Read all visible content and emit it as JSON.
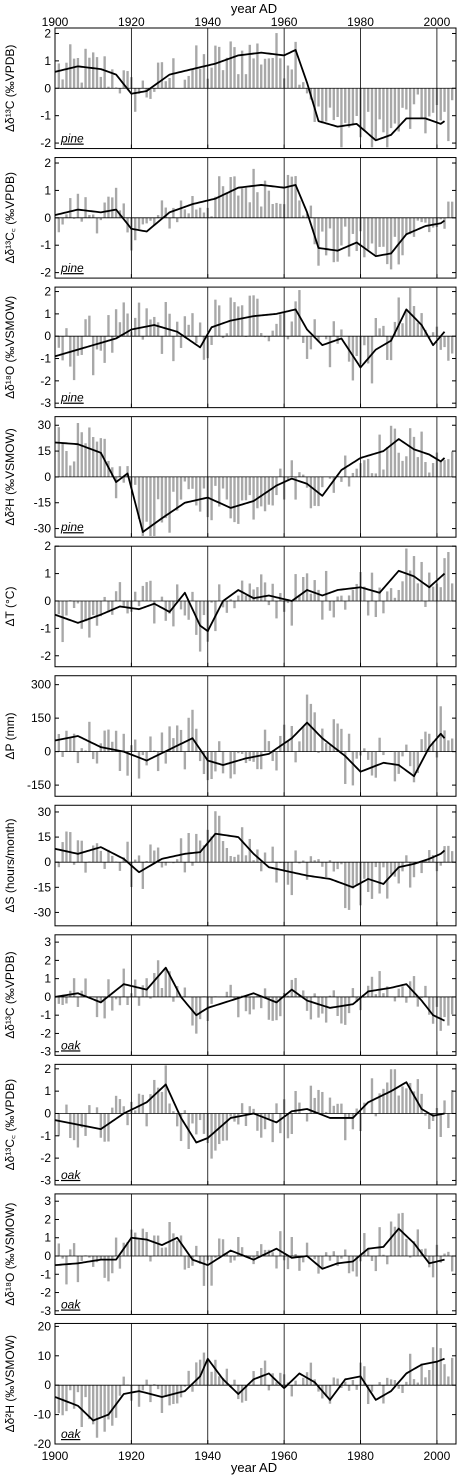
{
  "figure": {
    "top_xlabel": "year AD",
    "bottom_xlabel": "year AD",
    "xlim": [
      1900,
      2005
    ],
    "x_ticks": [
      1900,
      1920,
      1940,
      1960,
      1980,
      2000
    ],
    "colors": {
      "bars": "#a8a8a8",
      "line": "#000000",
      "frame": "#000000"
    }
  },
  "chart_data": [
    {
      "type": "bar+line",
      "ylabel": "Δδ¹³C (‰VPDB)",
      "species": "pine",
      "ylim": [
        -2.2,
        2.2
      ],
      "yticks": [
        2,
        1,
        0,
        -1,
        -2
      ],
      "bar_amp": 0.55,
      "line": [
        [
          1900,
          0.6
        ],
        [
          1906,
          0.8
        ],
        [
          1912,
          0.7
        ],
        [
          1916,
          0.5
        ],
        [
          1920,
          -0.2
        ],
        [
          1924,
          -0.1
        ],
        [
          1930,
          0.5
        ],
        [
          1936,
          0.7
        ],
        [
          1942,
          0.9
        ],
        [
          1948,
          1.2
        ],
        [
          1954,
          1.3
        ],
        [
          1960,
          1.2
        ],
        [
          1963,
          1.4
        ],
        [
          1966,
          0.2
        ],
        [
          1969,
          -1.2
        ],
        [
          1974,
          -1.4
        ],
        [
          1979,
          -1.3
        ],
        [
          1984,
          -1.9
        ],
        [
          1988,
          -1.7
        ],
        [
          1992,
          -1.1
        ],
        [
          1997,
          -1.1
        ],
        [
          2001,
          -1.3
        ],
        [
          2002,
          -1.2
        ]
      ]
    },
    {
      "type": "bar+line",
      "ylabel": "Δδ¹³C꜀ (‰VPDB)",
      "species": "pine",
      "ylim": [
        -2.2,
        2.2
      ],
      "yticks": [
        2,
        1,
        0,
        -1,
        -2
      ],
      "bar_amp": 0.5,
      "line": [
        [
          1900,
          0.1
        ],
        [
          1906,
          0.3
        ],
        [
          1912,
          0.2
        ],
        [
          1916,
          0.3
        ],
        [
          1920,
          -0.4
        ],
        [
          1924,
          -0.5
        ],
        [
          1930,
          0.2
        ],
        [
          1936,
          0.5
        ],
        [
          1942,
          0.7
        ],
        [
          1948,
          1.1
        ],
        [
          1954,
          1.2
        ],
        [
          1960,
          1.1
        ],
        [
          1963,
          1.2
        ],
        [
          1966,
          0.2
        ],
        [
          1969,
          -1.1
        ],
        [
          1974,
          -1.2
        ],
        [
          1979,
          -0.9
        ],
        [
          1984,
          -1.4
        ],
        [
          1988,
          -1.3
        ],
        [
          1992,
          -0.6
        ],
        [
          1997,
          -0.3
        ],
        [
          2001,
          -0.2
        ],
        [
          2002,
          -0.1
        ]
      ]
    },
    {
      "type": "bar+line",
      "ylabel": "Δδ¹⁸O (‰VSMOW)",
      "species": "pine",
      "ylim": [
        -3.2,
        2.2
      ],
      "yticks": [
        2,
        1,
        0,
        -1,
        -2,
        -3
      ],
      "bar_amp": 0.9,
      "line": [
        [
          1900,
          -0.9
        ],
        [
          1906,
          -0.6
        ],
        [
          1912,
          -0.3
        ],
        [
          1916,
          -0.1
        ],
        [
          1920,
          0.3
        ],
        [
          1926,
          0.5
        ],
        [
          1932,
          0.2
        ],
        [
          1938,
          -0.5
        ],
        [
          1941,
          0.4
        ],
        [
          1946,
          0.7
        ],
        [
          1952,
          0.9
        ],
        [
          1958,
          1.0
        ],
        [
          1963,
          1.2
        ],
        [
          1966,
          0.3
        ],
        [
          1970,
          -0.4
        ],
        [
          1975,
          -0.1
        ],
        [
          1980,
          -1.4
        ],
        [
          1984,
          -0.6
        ],
        [
          1988,
          -0.2
        ],
        [
          1992,
          1.2
        ],
        [
          1996,
          0.5
        ],
        [
          1999,
          -0.4
        ],
        [
          2002,
          0.2
        ]
      ]
    },
    {
      "type": "bar+line",
      "ylabel": "Δδ²H (‰VSMOW)",
      "species": "pine",
      "ylim": [
        -35,
        35
      ],
      "yticks": [
        30,
        15,
        0,
        -15,
        -30
      ],
      "bar_amp": 8,
      "line": [
        [
          1900,
          20
        ],
        [
          1906,
          19
        ],
        [
          1912,
          14
        ],
        [
          1916,
          -3
        ],
        [
          1919,
          2
        ],
        [
          1923,
          -32
        ],
        [
          1928,
          -24
        ],
        [
          1934,
          -15
        ],
        [
          1940,
          -12
        ],
        [
          1946,
          -18
        ],
        [
          1952,
          -14
        ],
        [
          1958,
          -5
        ],
        [
          1962,
          -1
        ],
        [
          1966,
          -4
        ],
        [
          1970,
          -11
        ],
        [
          1975,
          4
        ],
        [
          1980,
          11
        ],
        [
          1986,
          15
        ],
        [
          1990,
          22
        ],
        [
          1994,
          16
        ],
        [
          1998,
          13
        ],
        [
          2001,
          9
        ],
        [
          2002,
          11
        ]
      ]
    },
    {
      "type": "bar+line",
      "ylabel": "ΔT (°C)",
      "ylim": [
        -2.4,
        2.0
      ],
      "yticks": [
        2,
        1,
        0,
        -1,
        -2
      ],
      "bar_amp": 0.6,
      "line": [
        [
          1900,
          -0.5
        ],
        [
          1906,
          -0.8
        ],
        [
          1912,
          -0.5
        ],
        [
          1917,
          -0.2
        ],
        [
          1922,
          -0.3
        ],
        [
          1926,
          -0.1
        ],
        [
          1930,
          -0.4
        ],
        [
          1934,
          0.3
        ],
        [
          1938,
          -0.9
        ],
        [
          1940,
          -1.1
        ],
        [
          1944,
          0.0
        ],
        [
          1948,
          0.4
        ],
        [
          1952,
          0.1
        ],
        [
          1956,
          0.2
        ],
        [
          1962,
          0.0
        ],
        [
          1966,
          0.4
        ],
        [
          1970,
          0.2
        ],
        [
          1974,
          0.4
        ],
        [
          1980,
          0.5
        ],
        [
          1985,
          0.3
        ],
        [
          1990,
          1.1
        ],
        [
          1994,
          0.9
        ],
        [
          1998,
          0.5
        ],
        [
          2002,
          1.0
        ]
      ]
    },
    {
      "type": "bar+line",
      "ylabel": "ΔP (mm)",
      "ylim": [
        -200,
        340
      ],
      "yticks": [
        300,
        150,
        0,
        -150
      ],
      "bar_amp": 80,
      "line": [
        [
          1900,
          50
        ],
        [
          1906,
          70
        ],
        [
          1912,
          20
        ],
        [
          1918,
          0
        ],
        [
          1924,
          -40
        ],
        [
          1930,
          10
        ],
        [
          1936,
          60
        ],
        [
          1940,
          -40
        ],
        [
          1944,
          -60
        ],
        [
          1950,
          -30
        ],
        [
          1956,
          -10
        ],
        [
          1962,
          60
        ],
        [
          1966,
          130
        ],
        [
          1970,
          60
        ],
        [
          1976,
          -20
        ],
        [
          1980,
          -90
        ],
        [
          1986,
          -50
        ],
        [
          1990,
          -60
        ],
        [
          1994,
          -110
        ],
        [
          1998,
          20
        ],
        [
          2001,
          80
        ],
        [
          2002,
          60
        ]
      ]
    },
    {
      "type": "bar+line",
      "ylabel": "ΔS (hours/month)",
      "ylim": [
        -38,
        34
      ],
      "yticks": [
        30,
        15,
        0,
        -15,
        -30
      ],
      "bar_amp": 9,
      "line": [
        [
          1900,
          8
        ],
        [
          1906,
          5
        ],
        [
          1912,
          9
        ],
        [
          1918,
          2
        ],
        [
          1922,
          -6
        ],
        [
          1928,
          2
        ],
        [
          1934,
          5
        ],
        [
          1938,
          6
        ],
        [
          1942,
          17
        ],
        [
          1948,
          15
        ],
        [
          1952,
          5
        ],
        [
          1956,
          -3
        ],
        [
          1962,
          -6
        ],
        [
          1966,
          -8
        ],
        [
          1972,
          -10
        ],
        [
          1978,
          -15
        ],
        [
          1982,
          -10
        ],
        [
          1986,
          -13
        ],
        [
          1990,
          -3
        ],
        [
          1994,
          -1
        ],
        [
          1998,
          2
        ],
        [
          2001,
          5
        ],
        [
          2002,
          7
        ]
      ]
    },
    {
      "type": "bar+line",
      "ylabel": "Δδ¹³C (‰VPDB)",
      "species": "oak",
      "ylim": [
        -3.2,
        3.4
      ],
      "yticks": [
        3,
        2,
        1,
        0,
        -1,
        -2,
        -3
      ],
      "bar_amp": 0.7,
      "line": [
        [
          1900,
          0.0
        ],
        [
          1906,
          0.2
        ],
        [
          1912,
          -0.3
        ],
        [
          1918,
          0.7
        ],
        [
          1924,
          0.4
        ],
        [
          1929,
          1.6
        ],
        [
          1933,
          0.0
        ],
        [
          1937,
          -1.0
        ],
        [
          1940,
          -0.6
        ],
        [
          1946,
          -0.2
        ],
        [
          1952,
          0.2
        ],
        [
          1958,
          -0.3
        ],
        [
          1962,
          0.4
        ],
        [
          1966,
          -0.2
        ],
        [
          1972,
          -0.6
        ],
        [
          1978,
          -0.4
        ],
        [
          1982,
          0.3
        ],
        [
          1988,
          0.5
        ],
        [
          1992,
          0.7
        ],
        [
          1996,
          -0.2
        ],
        [
          1999,
          -1.0
        ],
        [
          2002,
          -1.3
        ]
      ]
    },
    {
      "type": "bar+line",
      "ylabel": "Δδ¹³C꜀ (‰VPDB)",
      "species": "oak",
      "ylim": [
        -3.2,
        2.2
      ],
      "yticks": [
        2,
        1,
        0,
        -1,
        -2,
        -3
      ],
      "bar_amp": 0.7,
      "line": [
        [
          1900,
          -0.3
        ],
        [
          1906,
          -0.5
        ],
        [
          1912,
          -0.7
        ],
        [
          1918,
          0.0
        ],
        [
          1924,
          0.5
        ],
        [
          1929,
          1.3
        ],
        [
          1933,
          -0.2
        ],
        [
          1937,
          -1.3
        ],
        [
          1940,
          -1.1
        ],
        [
          1946,
          -0.2
        ],
        [
          1952,
          0.0
        ],
        [
          1958,
          -0.4
        ],
        [
          1962,
          0.1
        ],
        [
          1966,
          0.2
        ],
        [
          1972,
          -0.2
        ],
        [
          1978,
          -0.2
        ],
        [
          1982,
          0.5
        ],
        [
          1988,
          1.0
        ],
        [
          1992,
          1.4
        ],
        [
          1996,
          0.2
        ],
        [
          1999,
          -0.1
        ],
        [
          2002,
          0.0
        ]
      ]
    },
    {
      "type": "bar+line",
      "ylabel": "Δδ¹⁸O (‰VSMOW)",
      "species": "oak",
      "ylim": [
        -3.2,
        3.4
      ],
      "yticks": [
        3,
        2,
        1,
        0,
        -1,
        -2,
        -3
      ],
      "bar_amp": 0.8,
      "line": [
        [
          1900,
          -0.5
        ],
        [
          1906,
          -0.4
        ],
        [
          1912,
          -0.2
        ],
        [
          1916,
          -0.2
        ],
        [
          1920,
          1.0
        ],
        [
          1924,
          0.9
        ],
        [
          1928,
          0.6
        ],
        [
          1932,
          1.0
        ],
        [
          1936,
          -0.2
        ],
        [
          1940,
          -0.5
        ],
        [
          1946,
          0.3
        ],
        [
          1952,
          -0.2
        ],
        [
          1958,
          0.4
        ],
        [
          1962,
          -0.1
        ],
        [
          1966,
          0.0
        ],
        [
          1970,
          -0.7
        ],
        [
          1974,
          -0.4
        ],
        [
          1978,
          -0.3
        ],
        [
          1982,
          0.4
        ],
        [
          1986,
          0.5
        ],
        [
          1990,
          1.5
        ],
        [
          1994,
          0.7
        ],
        [
          1998,
          -0.4
        ],
        [
          2002,
          -0.2
        ]
      ]
    },
    {
      "type": "bar+line",
      "ylabel": "Δδ²H (‰VSMOW)",
      "species": "oak",
      "ylim": [
        -20,
        21
      ],
      "yticks": [
        20,
        10,
        0,
        -10,
        -20
      ],
      "bar_amp": 4,
      "line": [
        [
          1900,
          -4
        ],
        [
          1906,
          -7
        ],
        [
          1910,
          -12
        ],
        [
          1914,
          -10
        ],
        [
          1918,
          -3
        ],
        [
          1922,
          -2
        ],
        [
          1928,
          -4
        ],
        [
          1934,
          -2
        ],
        [
          1938,
          3
        ],
        [
          1940,
          9
        ],
        [
          1944,
          2
        ],
        [
          1948,
          -3
        ],
        [
          1952,
          2
        ],
        [
          1956,
          4
        ],
        [
          1960,
          -1
        ],
        [
          1964,
          4
        ],
        [
          1968,
          1
        ],
        [
          1972,
          -5
        ],
        [
          1976,
          2
        ],
        [
          1980,
          3
        ],
        [
          1984,
          -5
        ],
        [
          1988,
          -2
        ],
        [
          1992,
          4
        ],
        [
          1996,
          7
        ],
        [
          2000,
          8
        ],
        [
          2002,
          9
        ]
      ]
    }
  ]
}
